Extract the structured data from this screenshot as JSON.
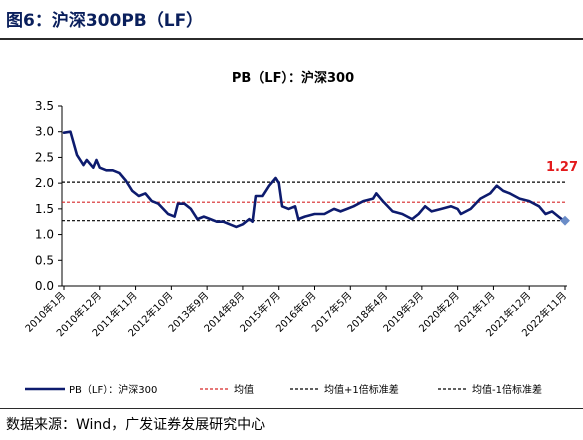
{
  "figure": {
    "title": "图6：沪深300PB（LF）",
    "source": "数据来源：Wind，广发证券发展研究中心"
  },
  "colors": {
    "title": "#0a1f5c",
    "series": "#0d1b6e",
    "mean": "#d62728",
    "band": "#000000",
    "last_label": "#e31a1c",
    "last_marker": "#6a8cc7"
  },
  "chart_data": {
    "type": "line",
    "title": "PB（LF）：沪深300",
    "xlabel": "",
    "ylabel": "",
    "ylim": [
      0,
      3.5
    ],
    "yticks": [
      "0.0",
      "0.5",
      "1.0",
      "1.5",
      "2.0",
      "2.5",
      "3.0",
      "3.5"
    ],
    "xticks": [
      "2010年1月",
      "2010年12月",
      "2011年11月",
      "2012年10月",
      "2013年9月",
      "2014年8月",
      "2015年7月",
      "2016年6月",
      "2017年5月",
      "2018年4月",
      "2019年3月",
      "2020年2月",
      "2021年1月",
      "2021年12月",
      "2022年11月"
    ],
    "grid": false,
    "legend_position": "bottom",
    "series": [
      {
        "name": "PB（LF）：沪深300",
        "style": "solid",
        "x": [
          "2010-01",
          "2010-03",
          "2010-05",
          "2010-07",
          "2010-08",
          "2010-10",
          "2010-11",
          "2010-12",
          "2011-02",
          "2011-04",
          "2011-06",
          "2011-08",
          "2011-10",
          "2011-12",
          "2012-02",
          "2012-04",
          "2012-06",
          "2012-09",
          "2012-11",
          "2012-12",
          "2013-02",
          "2013-04",
          "2013-06",
          "2013-08",
          "2013-10",
          "2013-12",
          "2014-02",
          "2014-04",
          "2014-06",
          "2014-08",
          "2014-10",
          "2014-11",
          "2014-12",
          "2015-02",
          "2015-04",
          "2015-06",
          "2015-07",
          "2015-08",
          "2015-10",
          "2015-12",
          "2016-01",
          "2016-03",
          "2016-06",
          "2016-09",
          "2016-12",
          "2017-02",
          "2017-04",
          "2017-06",
          "2017-09",
          "2017-12",
          "2018-01",
          "2018-03",
          "2018-06",
          "2018-09",
          "2018-12",
          "2019-02",
          "2019-04",
          "2019-06",
          "2019-09",
          "2019-12",
          "2020-02",
          "2020-03",
          "2020-06",
          "2020-09",
          "2020-12",
          "2021-02",
          "2021-04",
          "2021-06",
          "2021-09",
          "2021-12",
          "2022-03",
          "2022-05",
          "2022-07",
          "2022-09",
          "2022-10",
          "2022-11"
        ],
        "values": [
          2.98,
          3.0,
          2.55,
          2.35,
          2.45,
          2.3,
          2.45,
          2.3,
          2.25,
          2.25,
          2.2,
          2.05,
          1.85,
          1.75,
          1.8,
          1.65,
          1.6,
          1.4,
          1.35,
          1.6,
          1.6,
          1.5,
          1.3,
          1.35,
          1.3,
          1.25,
          1.25,
          1.2,
          1.15,
          1.2,
          1.3,
          1.25,
          1.75,
          1.75,
          1.95,
          2.1,
          2.0,
          1.55,
          1.5,
          1.55,
          1.3,
          1.35,
          1.4,
          1.4,
          1.5,
          1.45,
          1.5,
          1.55,
          1.65,
          1.7,
          1.8,
          1.65,
          1.45,
          1.4,
          1.3,
          1.4,
          1.55,
          1.45,
          1.5,
          1.55,
          1.5,
          1.4,
          1.5,
          1.7,
          1.8,
          1.95,
          1.85,
          1.8,
          1.7,
          1.65,
          1.55,
          1.4,
          1.45,
          1.35,
          1.3,
          1.27
        ]
      },
      {
        "name": "均值",
        "style": "dashed",
        "value": 1.63
      },
      {
        "name": "均值+1倍标准差",
        "style": "dashed",
        "value": 2.02
      },
      {
        "name": "均值-1倍标准差",
        "style": "dashed",
        "value": 1.27
      }
    ],
    "last_value_label": "1.27"
  }
}
